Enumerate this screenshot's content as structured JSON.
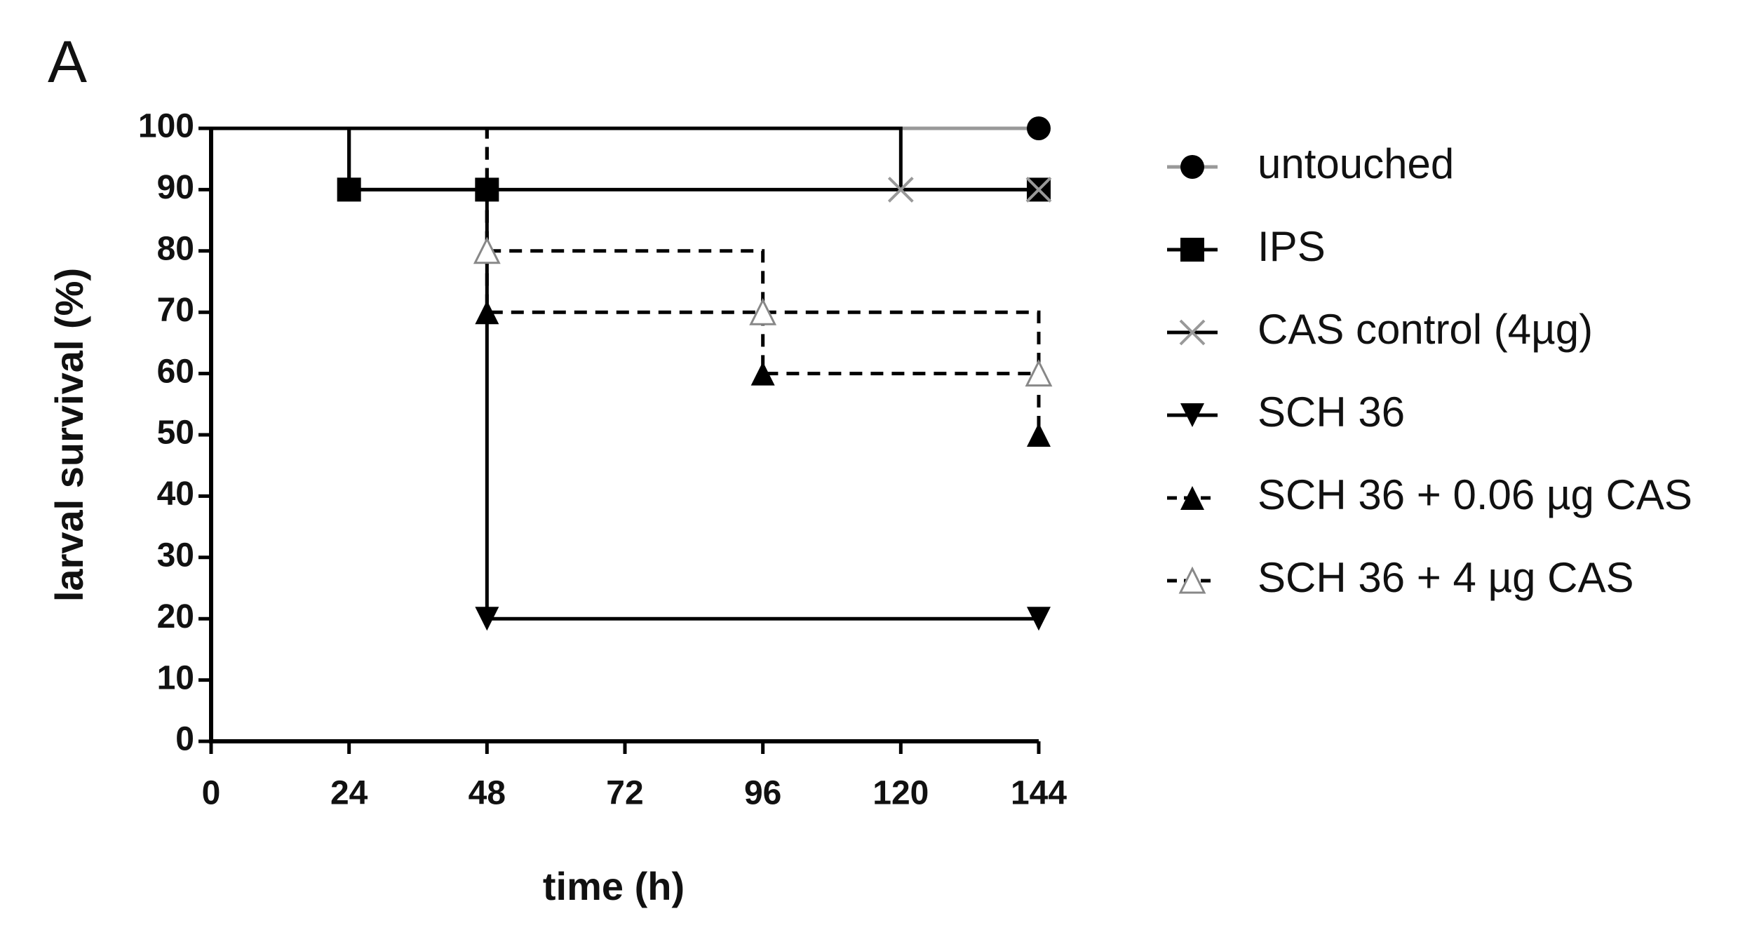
{
  "chart_data": {
    "type": "step",
    "panel_label": "A",
    "x_label": "time (h)",
    "y_label": "larval survival (%)",
    "xlim": [
      0,
      144
    ],
    "xticks": [
      0,
      24,
      48,
      72,
      96,
      120,
      144
    ],
    "ylim": [
      0,
      100
    ],
    "yticks": [
      0,
      10,
      20,
      30,
      40,
      50,
      60,
      70,
      80,
      90,
      100
    ],
    "series": [
      {
        "name": "untouched",
        "color": "#000000",
        "line_color": "#999999",
        "marker": "circle",
        "dashed": false,
        "x": [
          0,
          144
        ],
        "values": [
          100,
          100
        ]
      },
      {
        "name": "IPS",
        "color": "#000000",
        "line_color": "#000000",
        "marker": "square",
        "dashed": false,
        "x": [
          0,
          24,
          48,
          144
        ],
        "values": [
          100,
          90,
          90,
          90
        ]
      },
      {
        "name": "CAS control (4µg)",
        "color": "#999999",
        "line_color": "#000000",
        "marker": "x",
        "dashed": false,
        "x": [
          0,
          120,
          144
        ],
        "values": [
          100,
          90,
          90
        ]
      },
      {
        "name": "SCH 36",
        "color": "#000000",
        "line_color": "#000000",
        "marker": "triangle-down",
        "dashed": false,
        "x": [
          0,
          24,
          48,
          144
        ],
        "values": [
          100,
          90,
          20,
          20
        ]
      },
      {
        "name": "SCH 36 + 0.06 µg CAS",
        "color": "#000000",
        "line_color": "#000000",
        "marker": "triangle-up",
        "dashed": true,
        "x": [
          0,
          48,
          96,
          144
        ],
        "values": [
          100,
          70,
          60,
          50
        ]
      },
      {
        "name": "SCH 36 + 4 µg CAS",
        "color": "#888888",
        "line_color": "#000000",
        "marker": "triangle-open",
        "dashed": true,
        "x": [
          0,
          48,
          96,
          144
        ],
        "values": [
          100,
          80,
          70,
          60
        ]
      }
    ]
  }
}
